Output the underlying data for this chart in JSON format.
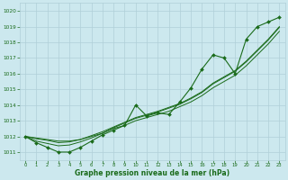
{
  "x": [
    0,
    1,
    2,
    3,
    4,
    5,
    6,
    7,
    8,
    9,
    10,
    11,
    12,
    13,
    14,
    15,
    16,
    17,
    18,
    19,
    20,
    21,
    22,
    23
  ],
  "pressure_main": [
    1012.0,
    1011.6,
    1011.3,
    1011.0,
    1011.0,
    1011.3,
    1011.7,
    1012.1,
    1012.4,
    1012.7,
    1014.0,
    1013.3,
    1013.5,
    1013.4,
    1014.2,
    1015.1,
    1016.3,
    1017.2,
    1017.0,
    1016.0,
    1018.2,
    1019.0,
    1019.3,
    1019.6
  ],
  "pressure_line1": [
    1012.0,
    1011.9,
    1011.8,
    1011.7,
    1011.7,
    1011.8,
    1012.0,
    1012.2,
    1012.5,
    1012.7,
    1013.0,
    1013.2,
    1013.4,
    1013.6,
    1013.9,
    1014.2,
    1014.6,
    1015.1,
    1015.5,
    1015.9,
    1016.5,
    1017.2,
    1017.9,
    1018.7
  ],
  "pressure_line2": [
    1012.0,
    1011.85,
    1011.75,
    1011.6,
    1011.65,
    1011.8,
    1012.05,
    1012.3,
    1012.6,
    1012.9,
    1013.2,
    1013.4,
    1013.6,
    1013.85,
    1014.1,
    1014.45,
    1014.85,
    1015.4,
    1015.8,
    1016.2,
    1016.8,
    1017.5,
    1018.2,
    1019.0
  ],
  "pressure_line3": [
    1012.0,
    1011.7,
    1011.55,
    1011.4,
    1011.45,
    1011.65,
    1011.9,
    1012.2,
    1012.55,
    1012.85,
    1013.15,
    1013.35,
    1013.55,
    1013.8,
    1014.05,
    1014.4,
    1014.8,
    1015.35,
    1015.75,
    1016.15,
    1016.75,
    1017.45,
    1018.15,
    1018.95
  ],
  "ylim": [
    1010.5,
    1020.5
  ],
  "yticks": [
    1011,
    1012,
    1013,
    1014,
    1015,
    1016,
    1017,
    1018,
    1019,
    1020
  ],
  "xlim": [
    -0.5,
    23.5
  ],
  "xticks": [
    0,
    1,
    2,
    3,
    4,
    5,
    6,
    7,
    8,
    9,
    10,
    11,
    12,
    13,
    14,
    15,
    16,
    17,
    18,
    19,
    20,
    21,
    22,
    23
  ],
  "xlabel": "Graphe pression niveau de la mer (hPa)",
  "line_color": "#1a6b1a",
  "bg_color": "#cce8ee",
  "grid_color": "#b0cfd8",
  "label_color": "#1a6b1a"
}
